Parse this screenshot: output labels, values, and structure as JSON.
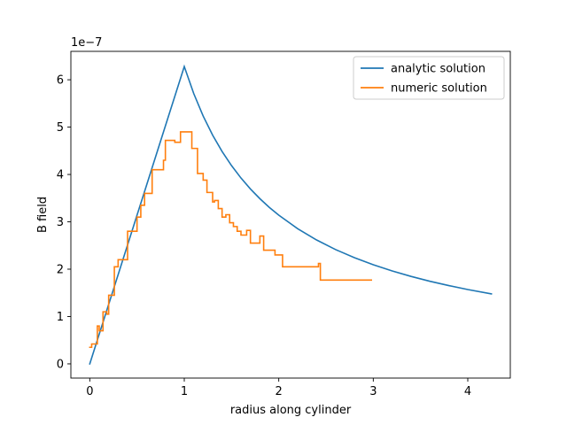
{
  "chart_data": {
    "type": "line",
    "xlabel": "radius along cylinder",
    "ylabel": "B field",
    "y_offset_label": "1e−7",
    "y_scale_exponent": -7,
    "xlim": [
      -0.2,
      4.45
    ],
    "ylim": [
      -0.3,
      6.6
    ],
    "x_ticks": [
      0,
      1,
      2,
      3,
      4
    ],
    "y_ticks": [
      0,
      1,
      2,
      3,
      4,
      5,
      6
    ],
    "grid": false,
    "legend_position": "upper right",
    "series": [
      {
        "name": "analytic solution",
        "color": "#1f77b4",
        "style": "analytic",
        "x": [
          0,
          0.1,
          0.2,
          0.3,
          0.4,
          0.5,
          0.6,
          0.7,
          0.8,
          0.9,
          1.0,
          1.1,
          1.2,
          1.3,
          1.4,
          1.5,
          1.6,
          1.7,
          1.8,
          1.9,
          2.0,
          2.2,
          2.4,
          2.6,
          2.8,
          3.0,
          3.2,
          3.4,
          3.6,
          3.8,
          4.0,
          4.25
        ],
        "y": [
          0,
          0.628,
          1.256,
          1.884,
          2.512,
          3.14,
          3.768,
          4.396,
          5.024,
          5.652,
          6.28,
          5.709,
          5.233,
          4.831,
          4.486,
          4.187,
          3.925,
          3.694,
          3.489,
          3.305,
          3.14,
          2.855,
          2.617,
          2.415,
          2.243,
          2.093,
          1.963,
          1.847,
          1.744,
          1.653,
          1.57,
          1.478
        ]
      },
      {
        "name": "numeric solution",
        "color": "#ff7f0e",
        "style": "step",
        "x": [
          0,
          0.02,
          0.02,
          0.08,
          0.08,
          0.1,
          0.1,
          0.14,
          0.14,
          0.18,
          0.18,
          0.2,
          0.2,
          0.26,
          0.26,
          0.3,
          0.3,
          0.4,
          0.4,
          0.42,
          0.42,
          0.5,
          0.5,
          0.54,
          0.54,
          0.58,
          0.58,
          0.66,
          0.66,
          0.78,
          0.78,
          0.8,
          0.8,
          0.9,
          0.9,
          0.96,
          0.96,
          1.08,
          1.08,
          1.14,
          1.14,
          1.2,
          1.2,
          1.24,
          1.24,
          1.3,
          1.3,
          1.32,
          1.32,
          1.36,
          1.36,
          1.4,
          1.4,
          1.44,
          1.44,
          1.48,
          1.48,
          1.52,
          1.52,
          1.56,
          1.56,
          1.6,
          1.6,
          1.66,
          1.66,
          1.7,
          1.7,
          1.8,
          1.8,
          1.84,
          1.84,
          1.96,
          1.96,
          2.04,
          2.04,
          2.06,
          2.06,
          2.42,
          2.42,
          2.44,
          2.44,
          2.98
        ],
        "y": [
          0.35,
          0.35,
          0.42,
          0.42,
          0.8,
          0.8,
          0.7,
          0.7,
          1.1,
          1.1,
          1.05,
          1.05,
          1.45,
          1.45,
          2.05,
          2.05,
          2.2,
          2.2,
          2.8,
          2.8,
          2.8,
          2.8,
          3.1,
          3.1,
          3.35,
          3.35,
          3.6,
          3.6,
          4.1,
          4.1,
          4.3,
          4.3,
          4.72,
          4.72,
          4.68,
          4.68,
          4.9,
          4.9,
          4.55,
          4.55,
          4.02,
          4.02,
          3.88,
          3.88,
          3.62,
          3.62,
          3.42,
          3.42,
          3.45,
          3.45,
          3.28,
          3.28,
          3.1,
          3.1,
          3.15,
          3.15,
          2.98,
          2.98,
          2.9,
          2.9,
          2.8,
          2.8,
          2.72,
          2.72,
          2.82,
          2.82,
          2.55,
          2.55,
          2.7,
          2.7,
          2.4,
          2.4,
          2.3,
          2.3,
          2.05,
          2.05,
          2.05,
          2.05,
          2.12,
          2.12,
          1.77,
          1.77
        ]
      }
    ]
  }
}
